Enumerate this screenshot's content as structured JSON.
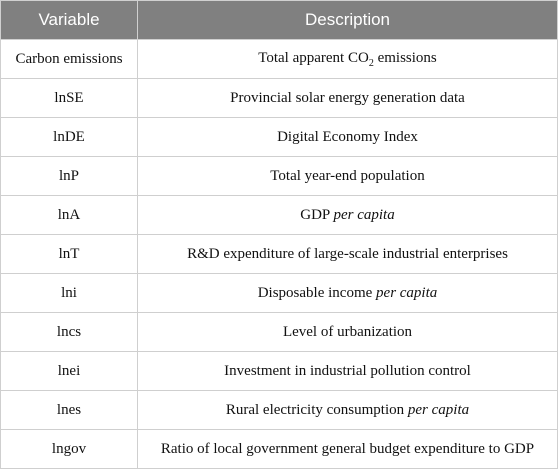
{
  "table": {
    "headers": [
      "Variable",
      "Description"
    ],
    "rows": [
      {
        "variable": "Carbon emissions",
        "description": [
          {
            "text": "Total apparent CO"
          },
          {
            "text": "2",
            "style": "sub"
          },
          {
            "text": " emissions"
          }
        ]
      },
      {
        "variable": "lnSE",
        "description": [
          {
            "text": "Provincial solar energy generation data"
          }
        ]
      },
      {
        "variable": "lnDE",
        "description": [
          {
            "text": "Digital Economy Index"
          }
        ]
      },
      {
        "variable": "lnP",
        "description": [
          {
            "text": "Total year-end population"
          }
        ]
      },
      {
        "variable": "lnA",
        "description": [
          {
            "text": "GDP "
          },
          {
            "text": "per capita",
            "style": "italic"
          }
        ]
      },
      {
        "variable": "lnT",
        "description": [
          {
            "text": "R&D expenditure of large-scale industrial enterprises"
          }
        ]
      },
      {
        "variable": "lni",
        "description": [
          {
            "text": "Disposable income "
          },
          {
            "text": "per capita",
            "style": "italic"
          }
        ]
      },
      {
        "variable": "lncs",
        "description": [
          {
            "text": "Level of urbanization"
          }
        ]
      },
      {
        "variable": "lnei",
        "description": [
          {
            "text": "Investment in industrial pollution control"
          }
        ]
      },
      {
        "variable": "lnes",
        "description": [
          {
            "text": "Rural electricity consumption "
          },
          {
            "text": "per capita",
            "style": "italic"
          }
        ]
      },
      {
        "variable": "lngov",
        "description": [
          {
            "text": "Ratio of local government general budget expenditure to GDP"
          }
        ]
      }
    ]
  }
}
